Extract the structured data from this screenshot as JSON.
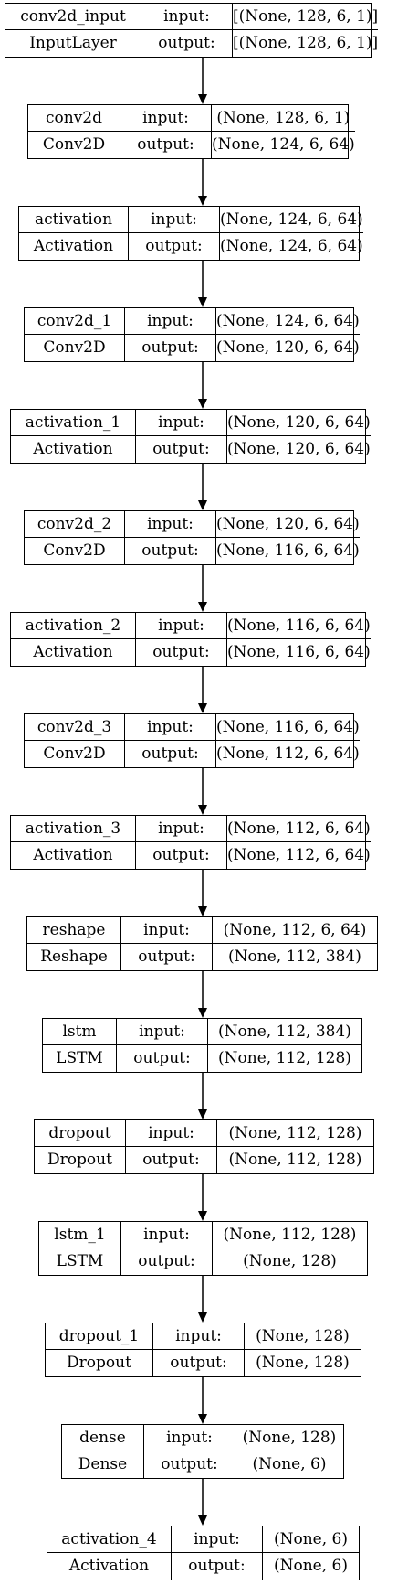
{
  "diagram": {
    "nodes": [
      {
        "name": "conv2d_input",
        "type": "InputLayer",
        "input_label": "input:",
        "output_label": "output:",
        "input_shape": "[(None, 128, 6, 1)]",
        "output_shape": "[(None, 128, 6, 1)]"
      },
      {
        "name": "conv2d",
        "type": "Conv2D",
        "input_label": "input:",
        "output_label": "output:",
        "input_shape": "(None, 128, 6, 1)",
        "output_shape": "(None, 124, 6, 64)"
      },
      {
        "name": "activation",
        "type": "Activation",
        "input_label": "input:",
        "output_label": "output:",
        "input_shape": "(None, 124, 6, 64)",
        "output_shape": "(None, 124, 6, 64)"
      },
      {
        "name": "conv2d_1",
        "type": "Conv2D",
        "input_label": "input:",
        "output_label": "output:",
        "input_shape": "(None, 124, 6, 64)",
        "output_shape": "(None, 120, 6, 64)"
      },
      {
        "name": "activation_1",
        "type": "Activation",
        "input_label": "input:",
        "output_label": "output:",
        "input_shape": "(None, 120, 6, 64)",
        "output_shape": "(None, 120, 6, 64)"
      },
      {
        "name": "conv2d_2",
        "type": "Conv2D",
        "input_label": "input:",
        "output_label": "output:",
        "input_shape": "(None, 120, 6, 64)",
        "output_shape": "(None, 116, 6, 64)"
      },
      {
        "name": "activation_2",
        "type": "Activation",
        "input_label": "input:",
        "output_label": "output:",
        "input_shape": "(None, 116, 6, 64)",
        "output_shape": "(None, 116, 6, 64)"
      },
      {
        "name": "conv2d_3",
        "type": "Conv2D",
        "input_label": "input:",
        "output_label": "output:",
        "input_shape": "(None, 116, 6, 64)",
        "output_shape": "(None, 112, 6, 64)"
      },
      {
        "name": "activation_3",
        "type": "Activation",
        "input_label": "input:",
        "output_label": "output:",
        "input_shape": "(None, 112, 6, 64)",
        "output_shape": "(None, 112, 6, 64)"
      },
      {
        "name": "reshape",
        "type": "Reshape",
        "input_label": "input:",
        "output_label": "output:",
        "input_shape": "(None, 112, 6, 64)",
        "output_shape": "(None, 112, 384)"
      },
      {
        "name": "lstm",
        "type": "LSTM",
        "input_label": "input:",
        "output_label": "output:",
        "input_shape": "(None, 112, 384)",
        "output_shape": "(None, 112, 128)"
      },
      {
        "name": "dropout",
        "type": "Dropout",
        "input_label": "input:",
        "output_label": "output:",
        "input_shape": "(None, 112, 128)",
        "output_shape": "(None, 112, 128)"
      },
      {
        "name": "lstm_1",
        "type": "LSTM",
        "input_label": "input:",
        "output_label": "output:",
        "input_shape": "(None, 112, 128)",
        "output_shape": "(None, 128)"
      },
      {
        "name": "dropout_1",
        "type": "Dropout",
        "input_label": "input:",
        "output_label": "output:",
        "input_shape": "(None, 128)",
        "output_shape": "(None, 128)"
      },
      {
        "name": "dense",
        "type": "Dense",
        "input_label": "input:",
        "output_label": "output:",
        "input_shape": "(None, 128)",
        "output_shape": "(None, 6)"
      },
      {
        "name": "activation_4",
        "type": "Activation",
        "input_label": "input:",
        "output_label": "output:",
        "input_shape": "(None, 6)",
        "output_shape": "(None, 6)"
      }
    ]
  }
}
